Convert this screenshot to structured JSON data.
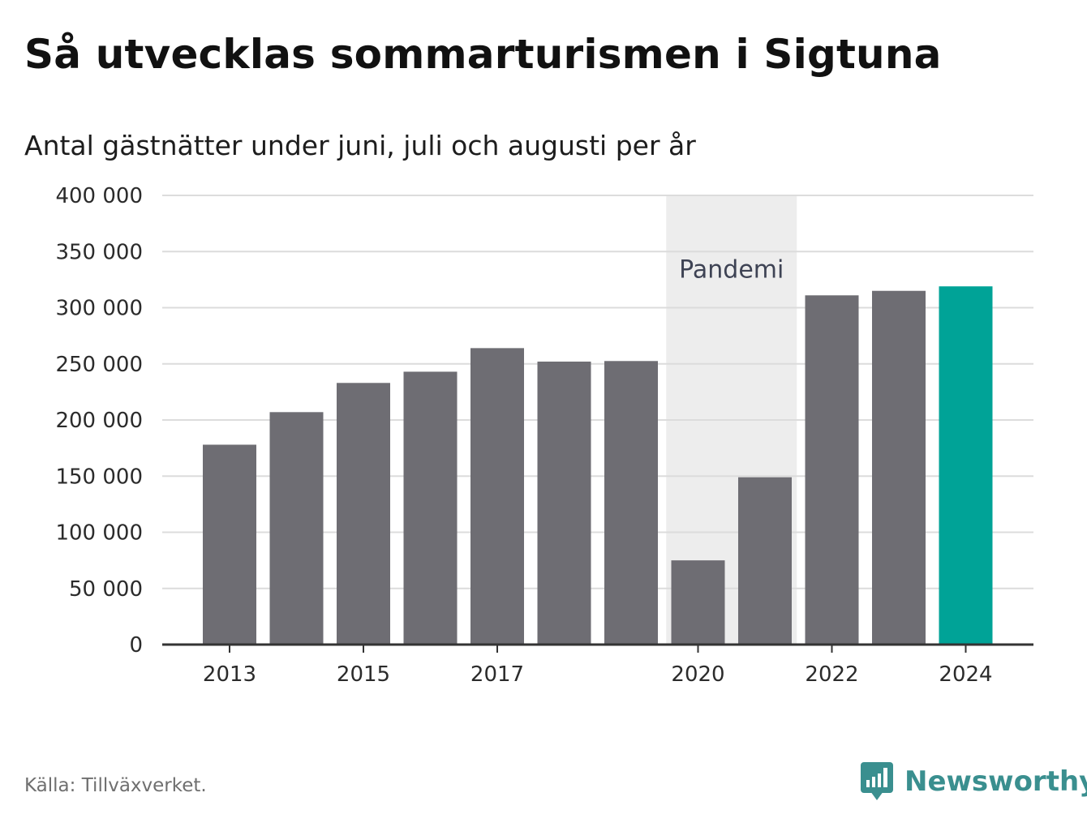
{
  "header": {
    "title": "Så utvecklas sommarturismen i Sigtuna",
    "subtitle": "Antal gästnätter under juni, juli och augusti per år"
  },
  "footer": {
    "source": "Källa: Tillväxverket.",
    "brand": "Newsworthy"
  },
  "colors": {
    "bar_default": "#6e6d73",
    "bar_highlight": "#00a397",
    "band": "#ededed",
    "grid": "#dcdcdc",
    "axis": "#333333",
    "brand": "#3a8f8f"
  },
  "icons": {
    "logo": "newsworthy-chart-bubble-icon"
  },
  "chart_data": {
    "type": "bar",
    "categories": [
      "2013",
      "2014",
      "2015",
      "2016",
      "2017",
      "2018",
      "2019",
      "2020",
      "2021",
      "2022",
      "2023",
      "2024"
    ],
    "x_tick_labels": [
      "2013",
      "",
      "2015",
      "",
      "2017",
      "",
      "",
      "2020",
      "",
      "2022",
      "",
      "2024"
    ],
    "values": [
      178000,
      207000,
      233000,
      243000,
      264000,
      252000,
      252500,
      75000,
      149000,
      311000,
      315000,
      319000
    ],
    "highlight_category": "2024",
    "y_ticks": [
      0,
      50000,
      100000,
      150000,
      200000,
      250000,
      300000,
      350000,
      400000
    ],
    "y_tick_labels": [
      "0",
      "50 000",
      "100 000",
      "150 000",
      "200 000",
      "250 000",
      "300 000",
      "350 000",
      "400 000"
    ],
    "ylim": [
      0,
      400000
    ],
    "grid": true,
    "shaded_band": {
      "label": "Pandemi",
      "from_category": "2020",
      "to_category": "2021"
    },
    "xlabel": "",
    "ylabel": ""
  }
}
